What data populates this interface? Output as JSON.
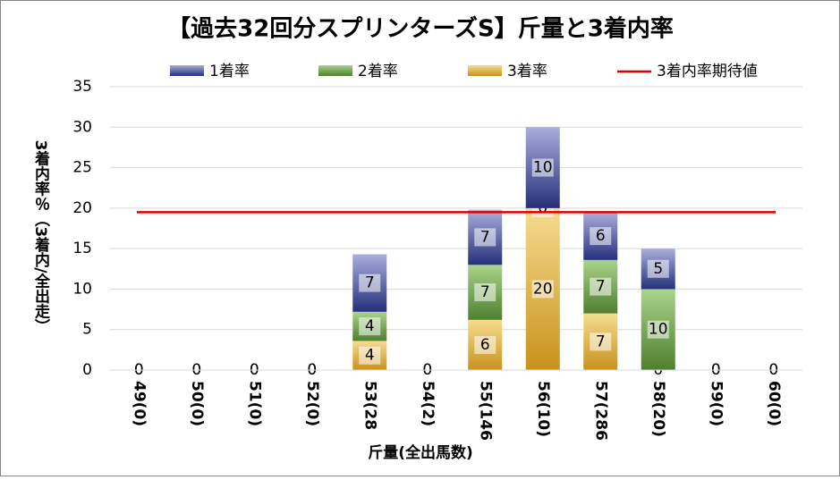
{
  "chart_data": {
    "type": "stacked_bar",
    "title": "【過去32回分スプリンターズS】斤量と3着内率",
    "x_label": "斤量(全出馬数)",
    "y_label": "3着内率％（3着内/全出走）",
    "categories": [
      "49(0)",
      "50(0)",
      "51(0)",
      "52(0)",
      "53(28",
      "54(2)",
      "55(146",
      "56(10)",
      "57(286",
      "58(20)",
      "59(0)",
      "60(0)"
    ],
    "series": [
      {
        "name": "3着率",
        "color": "#c8921c",
        "light": "#f6dc90",
        "values": [
          0,
          0,
          0,
          0,
          3.6,
          0,
          6.2,
          20,
          7.0,
          0,
          0,
          0
        ],
        "value_labels": [
          "0",
          "0",
          "0",
          "0",
          "4",
          "0",
          "6",
          "20",
          "7",
          "0",
          "0",
          "0"
        ]
      },
      {
        "name": "2着率",
        "color": "#4f7f2e",
        "light": "#a9d48c",
        "values": [
          0,
          0,
          0,
          0,
          3.6,
          0,
          6.8,
          0,
          6.6,
          10,
          0,
          0
        ],
        "value_labels": [
          "0",
          "0",
          "0",
          "0",
          "4",
          "0",
          "7",
          "0",
          "7",
          "10",
          "0",
          "0"
        ]
      },
      {
        "name": "1着率",
        "color": "#25307a",
        "light": "#a9aedc",
        "values": [
          0,
          0,
          0,
          0,
          7.1,
          0,
          6.8,
          10,
          5.9,
          5,
          0,
          0
        ],
        "value_labels": [
          "0",
          "0",
          "0",
          "0",
          "7",
          "0",
          "7",
          "10",
          "6",
          "5",
          "0",
          "0"
        ]
      }
    ],
    "reference_line": {
      "name": "3着内率期待値",
      "value": 19.5,
      "color": "#e00000"
    },
    "ylim": [
      0,
      35
    ],
    "yticks": [
      0,
      5,
      10,
      15,
      20,
      25,
      30,
      35
    ],
    "grid": true
  }
}
